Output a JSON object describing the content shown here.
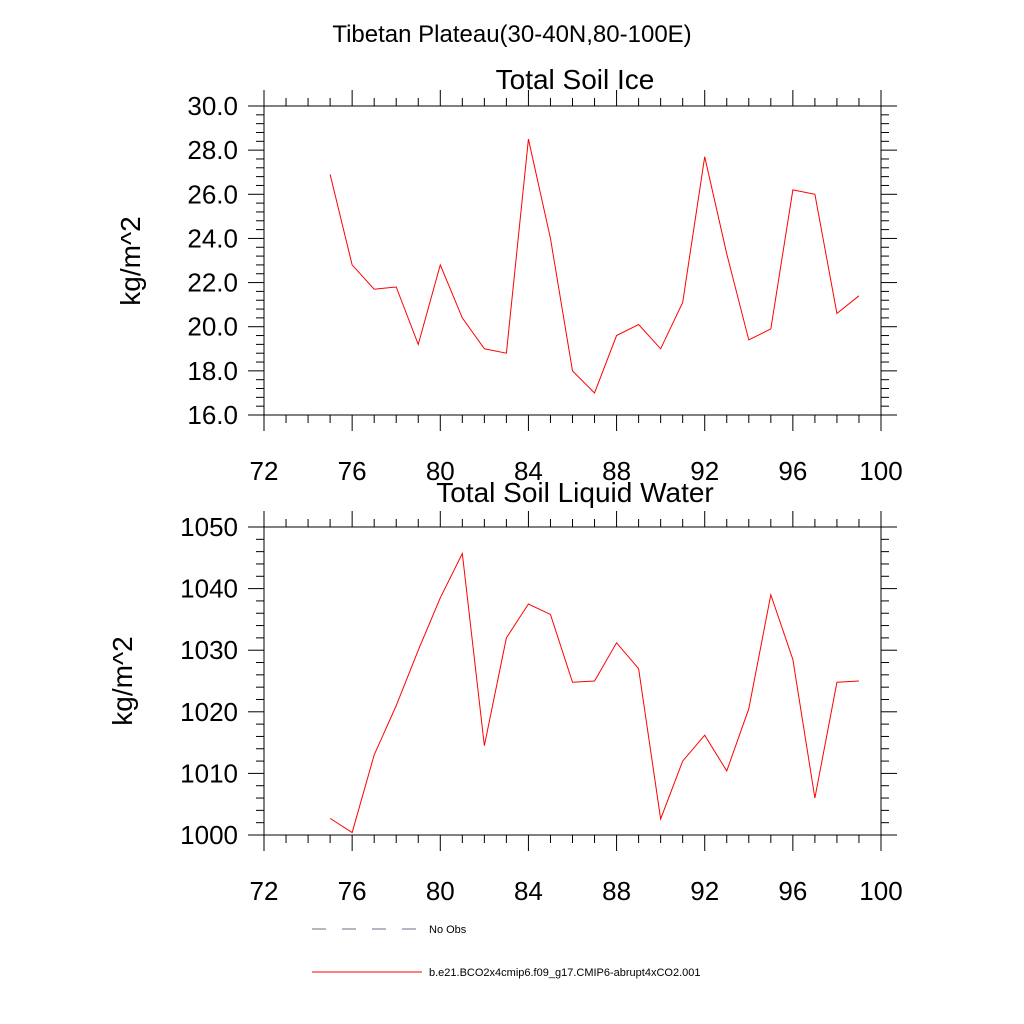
{
  "figure": {
    "suptitle": "Tibetan Plateau(30-40N,80-100E)"
  },
  "legend": {
    "entries": [
      {
        "label": "No Obs",
        "color": "#6b6b8a",
        "style": "dashed"
      },
      {
        "label": "b.e21.BCO2x4cmip6.f09_g17.CMIP6-abrupt4xCO2.001",
        "color": "#ff0000",
        "style": "solid"
      }
    ]
  },
  "chart_data": [
    {
      "type": "line",
      "title": "Total Soil Ice",
      "xlabel": "",
      "ylabel": "kg/m^2",
      "xlim": [
        72,
        100
      ],
      "ylim": [
        16,
        30
      ],
      "xticks": [
        72,
        76,
        80,
        84,
        88,
        92,
        96,
        100
      ],
      "xtick_labels": [
        "72",
        "76",
        "80",
        "84",
        "88",
        "92",
        "96",
        "100"
      ],
      "yticks": [
        16,
        18,
        20,
        22,
        24,
        26,
        28,
        30
      ],
      "ytick_labels": [
        "16.0",
        "18.0",
        "20.0",
        "22.0",
        "24.0",
        "26.0",
        "28.0",
        "30.0"
      ],
      "grid": false,
      "series": [
        {
          "name": "b.e21.BCO2x4cmip6.f09_g17.CMIP6-abrupt4xCO2.001",
          "color": "#ff0000",
          "x": [
            75,
            76,
            77,
            78,
            79,
            80,
            81,
            82,
            83,
            84,
            85,
            86,
            87,
            88,
            89,
            90,
            91,
            92,
            93,
            94,
            95,
            96,
            97,
            98,
            99
          ],
          "y": [
            26.9,
            22.8,
            21.7,
            21.8,
            19.2,
            22.8,
            20.4,
            19.0,
            18.8,
            28.5,
            24.0,
            18.0,
            17.0,
            19.6,
            20.1,
            19.0,
            21.1,
            27.7,
            23.3,
            19.4,
            19.9,
            26.2,
            26.0,
            20.6,
            21.4
          ]
        }
      ]
    },
    {
      "type": "line",
      "title": "Total Soil Liquid Water",
      "xlabel": "",
      "ylabel": "kg/m^2",
      "xlim": [
        72,
        100
      ],
      "ylim": [
        1000,
        1050
      ],
      "xticks": [
        72,
        76,
        80,
        84,
        88,
        92,
        96,
        100
      ],
      "xtick_labels": [
        "72",
        "76",
        "80",
        "84",
        "88",
        "92",
        "96",
        "100"
      ],
      "yticks": [
        1000,
        1010,
        1020,
        1030,
        1040,
        1050
      ],
      "ytick_labels": [
        "1000",
        "1010",
        "1020",
        "1030",
        "1040",
        "1050"
      ],
      "grid": false,
      "series": [
        {
          "name": "b.e21.BCO2x4cmip6.f09_g17.CMIP6-abrupt4xCO2.001",
          "color": "#ff0000",
          "x": [
            75,
            76,
            77,
            78,
            79,
            80,
            81,
            82,
            83,
            84,
            85,
            86,
            87,
            88,
            89,
            90,
            91,
            92,
            93,
            94,
            95,
            96,
            97,
            98,
            99
          ],
          "y": [
            1002.7,
            1000.4,
            1013.0,
            1021.0,
            1030.0,
            1038.5,
            1045.7,
            1014.5,
            1032.0,
            1037.5,
            1035.8,
            1024.8,
            1025.0,
            1031.2,
            1027.0,
            1002.6,
            1012.0,
            1016.2,
            1010.4,
            1020.5,
            1039.0,
            1028.5,
            1006.0,
            1024.8,
            1025.0
          ]
        }
      ]
    }
  ]
}
